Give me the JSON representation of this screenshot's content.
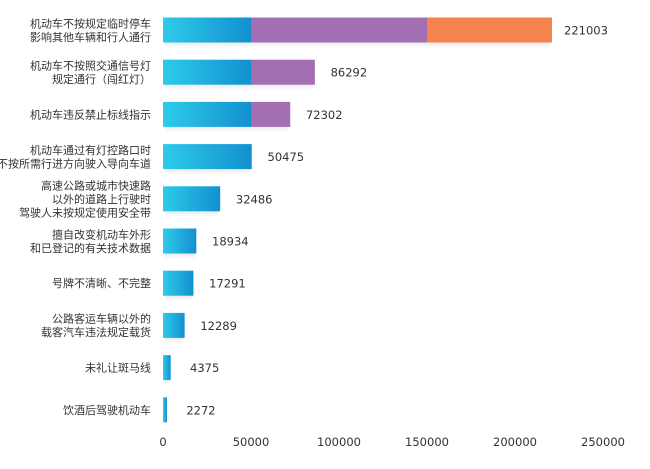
{
  "chart_data": {
    "type": "bar",
    "orientation": "horizontal",
    "stacked": true,
    "categories": [
      [
        "机动车不按规定临时停车",
        "影响其他车辆和行人通行"
      ],
      [
        "机动车不按照交通信号灯",
        "规定通行（闯红灯）"
      ],
      [
        "机动车违反禁止标线指示"
      ],
      [
        "机动车通过有灯控路口时",
        "不按所需行进方向驶入导向车道"
      ],
      [
        "高速公路或城市快速路",
        "以外的道路上行驶时",
        "驾驶人未按规定使用安全带"
      ],
      [
        "擅自改变机动车外形",
        "和已登记的有关技术数据"
      ],
      [
        "号牌不清晰、不完整"
      ],
      [
        "公路客运车辆以外的",
        "载客汽车违法规定载货"
      ],
      [
        "未礼让斑马线"
      ],
      [
        "饮酒后驾驶机动车"
      ]
    ],
    "totals": [
      221003,
      86292,
      72302,
      50475,
      32486,
      18934,
      17291,
      12289,
      4375,
      2272
    ],
    "segment_breaks": [
      50000,
      150000
    ],
    "segment_colors": [
      "#1fa8dc",
      "#a46fb2",
      "#f5834e"
    ],
    "xlim": [
      0,
      250000
    ],
    "xticks": [
      0,
      50000,
      100000,
      150000,
      200000,
      250000
    ],
    "grid": false,
    "legend": "none",
    "title": "",
    "xlabel": "",
    "ylabel": ""
  }
}
